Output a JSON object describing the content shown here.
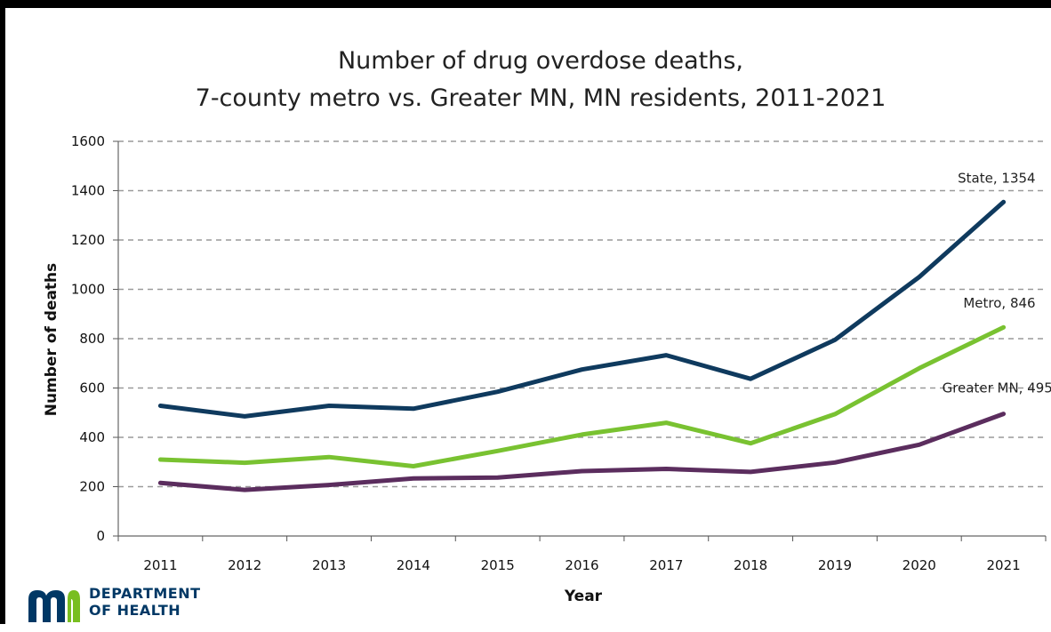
{
  "chart_data": {
    "type": "line",
    "title": [
      "Number of drug overdose deaths,",
      "7-county metro vs. Greater MN, MN residents, 2011-2021"
    ],
    "xlabel": "Year",
    "ylabel": "Number of deaths",
    "categories": [
      "2011",
      "2012",
      "2013",
      "2014",
      "2015",
      "2016",
      "2017",
      "2018",
      "2019",
      "2020",
      "2021"
    ],
    "yticks": [
      "0",
      "200",
      "400",
      "600",
      "800",
      "1000",
      "1200",
      "1400",
      "1600"
    ],
    "ylim": [
      0,
      1600
    ],
    "grid": "horizontal dashed",
    "legend": "none (end-of-line labels)",
    "series": [
      {
        "name": "State",
        "color": "#0f3a5e",
        "end_label": "State, 1354",
        "values": [
          528,
          485,
          528,
          516,
          585,
          675,
          733,
          637,
          795,
          1050,
          1354
        ]
      },
      {
        "name": "Metro",
        "color": "#79c231",
        "end_label": "Metro, 846",
        "values": [
          310,
          297,
          320,
          283,
          345,
          411,
          459,
          376,
          494,
          680,
          846
        ]
      },
      {
        "name": "Greater MN",
        "color": "#5b2d5e",
        "end_label": "Greater MN, 495",
        "values": [
          215,
          187,
          207,
          233,
          237,
          263,
          272,
          260,
          298,
          370,
          495
        ]
      }
    ]
  },
  "logo": {
    "line1": "DEPARTMENT",
    "line2": "OF HEALTH",
    "color": "#003865",
    "icon": "mn-logo-icon"
  }
}
